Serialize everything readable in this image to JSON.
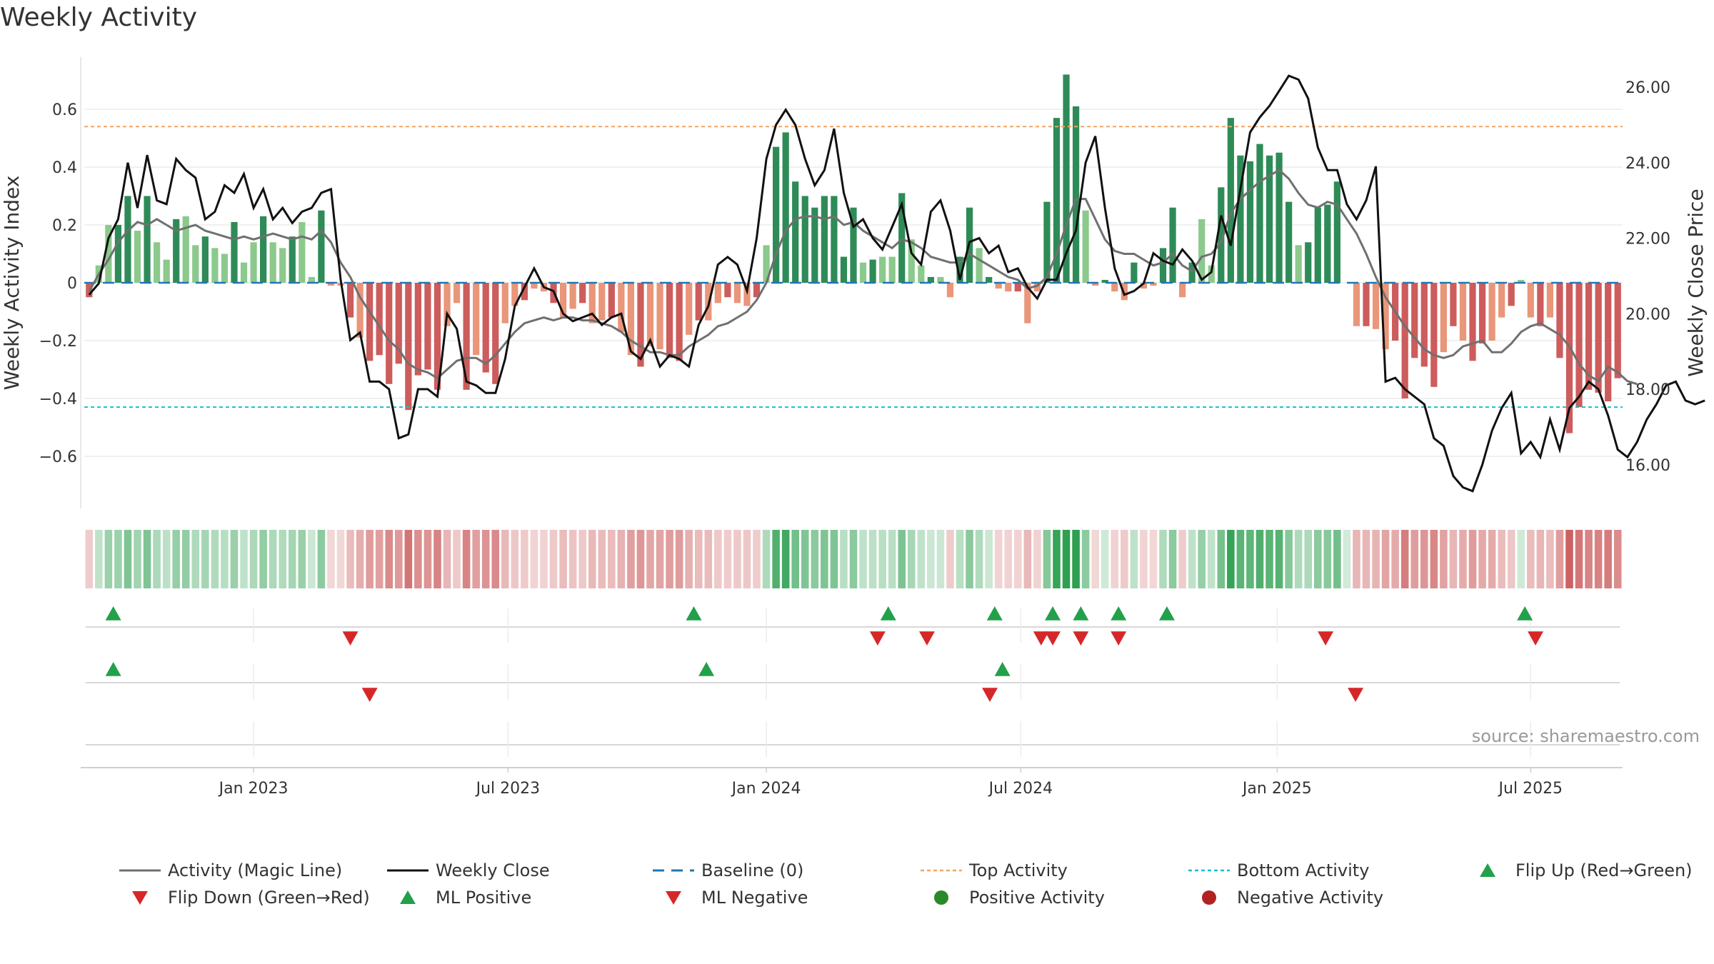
{
  "title": "Weekly Activity",
  "source": "source: sharemaestro.com",
  "colors": {
    "pos_dark": "#2e8b57",
    "pos_light": "#8cc98c",
    "neg_dark": "#cd5c5c",
    "neg_light": "#e9967a",
    "magic": "#707070",
    "close": "#111111",
    "baseline": "#1f77b4",
    "top": "#f4a460",
    "bottom": "#17becf",
    "up": "#22a04a",
    "down": "#d62728"
  },
  "legend": [
    {
      "label": "Activity (Magic Line)",
      "type": "line",
      "color": "#707070"
    },
    {
      "label": "Weekly Close",
      "type": "line",
      "color": "#111111"
    },
    {
      "label": "Baseline (0)",
      "type": "dash",
      "color": "#1f77b4"
    },
    {
      "label": "Top Activity",
      "type": "dot",
      "color": "#f4a460"
    },
    {
      "label": "Bottom Activity",
      "type": "dot",
      "color": "#17becf"
    },
    {
      "label": "Flip Up (Red→Green)",
      "type": "tri-up",
      "color": "#22a04a"
    },
    {
      "label": "Flip Down (Green→Red)",
      "type": "tri-down",
      "color": "#d62728"
    },
    {
      "label": "ML Positive",
      "type": "tri-up",
      "color": "#22a04a"
    },
    {
      "label": "ML Negative",
      "type": "tri-down",
      "color": "#d62728"
    },
    {
      "label": "Positive Activity",
      "type": "circle",
      "color": "#2a8a2a"
    },
    {
      "label": "Negative Activity",
      "type": "circle",
      "color": "#b22222"
    }
  ],
  "chart_data": {
    "type": "bar",
    "title": "Weekly Activity",
    "ylabel": "Weekly Activity Index",
    "y2label": "Weekly Close Price",
    "ylim": [
      -0.78,
      0.78
    ],
    "y2lim": [
      14.8,
      27.2
    ],
    "yticks": [
      0.6,
      0.4,
      0.2,
      0,
      -0.2,
      -0.4,
      -0.6
    ],
    "ytick_labels": [
      "0.6",
      "0.4",
      "0.2",
      "0",
      "−0.2",
      "−0.4",
      "−0.6"
    ],
    "y2ticks": [
      26,
      24,
      22,
      20,
      18,
      16
    ],
    "y2tick_labels": [
      "26.00",
      "24.00",
      "22.00",
      "20.00",
      "18.00",
      "16.00"
    ],
    "xticks": [
      17.0,
      43.3,
      70.0,
      96.3,
      122.8,
      149.0
    ],
    "xtick_labels": [
      "Jan 2023",
      "Jul 2023",
      "Jan 2024",
      "Jul 2024",
      "Jan 2025",
      "Jul 2025"
    ],
    "top_activity": 0.54,
    "bottom_activity": -0.43,
    "baseline": 0,
    "weeks": 159,
    "activity": [
      -0.05,
      0.06,
      0.2,
      0.2,
      0.3,
      0.18,
      0.3,
      0.14,
      0.08,
      0.22,
      0.23,
      0.13,
      0.16,
      0.12,
      0.1,
      0.21,
      0.07,
      0.14,
      0.23,
      0.14,
      0.12,
      0.16,
      0.21,
      0.02,
      0.25,
      -0.01,
      -0.01,
      -0.12,
      -0.19,
      -0.27,
      -0.25,
      -0.35,
      -0.28,
      -0.44,
      -0.32,
      -0.3,
      -0.37,
      -0.15,
      -0.07,
      -0.37,
      -0.25,
      -0.31,
      -0.35,
      -0.14,
      -0.08,
      -0.06,
      -0.02,
      -0.03,
      -0.07,
      -0.12,
      -0.09,
      -0.07,
      -0.14,
      -0.13,
      -0.12,
      -0.17,
      -0.25,
      -0.29,
      -0.22,
      -0.23,
      -0.26,
      -0.27,
      -0.18,
      -0.13,
      -0.13,
      -0.07,
      -0.05,
      -0.07,
      -0.08,
      -0.05,
      0.13,
      0.47,
      0.52,
      0.35,
      0.3,
      0.26,
      0.3,
      0.3,
      0.09,
      0.26,
      0.07,
      0.08,
      0.09,
      0.09,
      0.31,
      0.15,
      0.06,
      0.02,
      0.02,
      -0.05,
      0.09,
      0.26,
      0.12,
      0.02,
      -0.02,
      -0.03,
      -0.03,
      -0.14,
      -0.03,
      0.28,
      0.57,
      0.72,
      0.61,
      0.25,
      -0.01,
      0.01,
      -0.03,
      -0.06,
      0.07,
      -0.02,
      -0.01,
      0.12,
      0.26,
      -0.05,
      0.07,
      0.22,
      0.06,
      0.33,
      0.57,
      0.44,
      0.42,
      0.48,
      0.44,
      0.45,
      0.28,
      0.13,
      0.14,
      0.26,
      0.27,
      0.35,
      0,
      -0.15,
      -0.15,
      -0.16,
      -0.23,
      -0.2,
      -0.4,
      -0.26,
      -0.29,
      -0.36,
      -0.24,
      -0.15,
      -0.2,
      -0.27,
      -0.21,
      -0.2,
      -0.12,
      -0.08,
      0.01,
      -0.12,
      -0.15,
      -0.12,
      -0.26,
      -0.52,
      -0.43,
      -0.37,
      -0.38,
      -0.41,
      -0.33
    ],
    "magic_line": [
      -0.03,
      0.03,
      0.08,
      0.14,
      0.18,
      0.21,
      0.2,
      0.22,
      0.2,
      0.18,
      0.19,
      0.2,
      0.18,
      0.17,
      0.16,
      0.15,
      0.16,
      0.15,
      0.16,
      0.17,
      0.16,
      0.15,
      0.16,
      0.15,
      0.18,
      0.14,
      0.07,
      0.02,
      -0.05,
      -0.1,
      -0.15,
      -0.2,
      -0.23,
      -0.28,
      -0.3,
      -0.31,
      -0.33,
      -0.3,
      -0.27,
      -0.26,
      -0.26,
      -0.28,
      -0.25,
      -0.21,
      -0.17,
      -0.14,
      -0.13,
      -0.12,
      -0.13,
      -0.12,
      -0.12,
      -0.13,
      -0.13,
      -0.14,
      -0.15,
      -0.17,
      -0.2,
      -0.22,
      -0.24,
      -0.24,
      -0.25,
      -0.25,
      -0.22,
      -0.2,
      -0.18,
      -0.15,
      -0.14,
      -0.12,
      -0.1,
      -0.06,
      0,
      0.1,
      0.18,
      0.22,
      0.23,
      0.23,
      0.22,
      0.23,
      0.2,
      0.21,
      0.18,
      0.16,
      0.14,
      0.12,
      0.15,
      0.14,
      0.12,
      0.09,
      0.08,
      0.07,
      0.07,
      0.1,
      0.08,
      0.06,
      0.04,
      0.02,
      0.01,
      -0.02,
      -0.01,
      0.02,
      0.1,
      0.2,
      0.29,
      0.29,
      0.22,
      0.15,
      0.11,
      0.1,
      0.1,
      0.08,
      0.06,
      0.07,
      0.1,
      0.06,
      0.04,
      0.09,
      0.1,
      0.14,
      0.24,
      0.29,
      0.32,
      0.35,
      0.37,
      0.39,
      0.36,
      0.31,
      0.27,
      0.26,
      0.28,
      0.27,
      0.22,
      0.17,
      0.1,
      0.02,
      -0.05,
      -0.1,
      -0.15,
      -0.19,
      -0.23,
      -0.25,
      -0.26,
      -0.25,
      -0.22,
      -0.21,
      -0.2,
      -0.24,
      -0.24,
      -0.21,
      -0.17,
      -0.15,
      -0.14,
      -0.16,
      -0.18,
      -0.22,
      -0.28,
      -0.32,
      -0.34,
      -0.29,
      -0.31,
      -0.34,
      -0.35
    ],
    "weekly_close": [
      20.5,
      20.8,
      22,
      22.5,
      24,
      22.8,
      24.2,
      23,
      22.9,
      24.1,
      23.8,
      23.6,
      22.5,
      22.7,
      23.4,
      23.2,
      23.7,
      22.8,
      23.3,
      22.5,
      22.8,
      22.4,
      22.7,
      22.8,
      23.2,
      23.3,
      20.9,
      19.3,
      19.5,
      18.2,
      18.2,
      18,
      16.7,
      16.8,
      18,
      18,
      17.8,
      20,
      19.6,
      18.2,
      18.1,
      17.9,
      17.9,
      18.8,
      20.2,
      20.7,
      21.2,
      20.7,
      20.6,
      20,
      19.8,
      19.9,
      20,
      19.7,
      19.9,
      20,
      19,
      18.8,
      19.3,
      18.6,
      18.9,
      18.8,
      18.6,
      19.7,
      20.2,
      21.3,
      21.5,
      21.3,
      20.6,
      22,
      24.1,
      25,
      25.4,
      25,
      24.1,
      23.4,
      23.8,
      24.9,
      23.2,
      22.3,
      22.5,
      22,
      21.7,
      22.3,
      22.9,
      21.6,
      21.3,
      22.7,
      23,
      22.2,
      20.9,
      21.9,
      22,
      21.6,
      21.8,
      21.1,
      21.2,
      20.7,
      20.4,
      20.9,
      20.9,
      21.6,
      22.2,
      24,
      24.7,
      22.8,
      21.2,
      20.5,
      20.6,
      20.8,
      21.6,
      21.4,
      21.3,
      21.7,
      21.4,
      20.9,
      21.1,
      22.6,
      21.8,
      23.3,
      24.8,
      25.2,
      25.5,
      25.9,
      26.3,
      26.2,
      25.7,
      24.4,
      23.8,
      23.8,
      22.9,
      22.5,
      23,
      23.9,
      18.2,
      18.3,
      18,
      17.8,
      17.6,
      16.7,
      16.5,
      15.7,
      15.4,
      15.3,
      16,
      16.9,
      17.5,
      17.9,
      16.3,
      16.6,
      16.2,
      17.2,
      16.4,
      17.5,
      17.8,
      18.2,
      18,
      17.3,
      16.4,
      16.2,
      16.6,
      17.2,
      17.6,
      18.1,
      18.2,
      17.7,
      17.6,
      17.7
    ]
  },
  "heat_strip": {
    "label": "activity heat strip"
  },
  "signals": {
    "flip_up": [
      2.5,
      62.5,
      82.6,
      93.6,
      99.6,
      102.5,
      106.4,
      111.4,
      148.4
    ],
    "flip_down": [
      27,
      81.5,
      86.6,
      98.4,
      99.6,
      102.5,
      106.4,
      127.8,
      149.5
    ],
    "ml_positive": [
      2.5,
      63.8,
      94.4
    ],
    "ml_negative": [
      29,
      93.1,
      130.9
    ]
  }
}
